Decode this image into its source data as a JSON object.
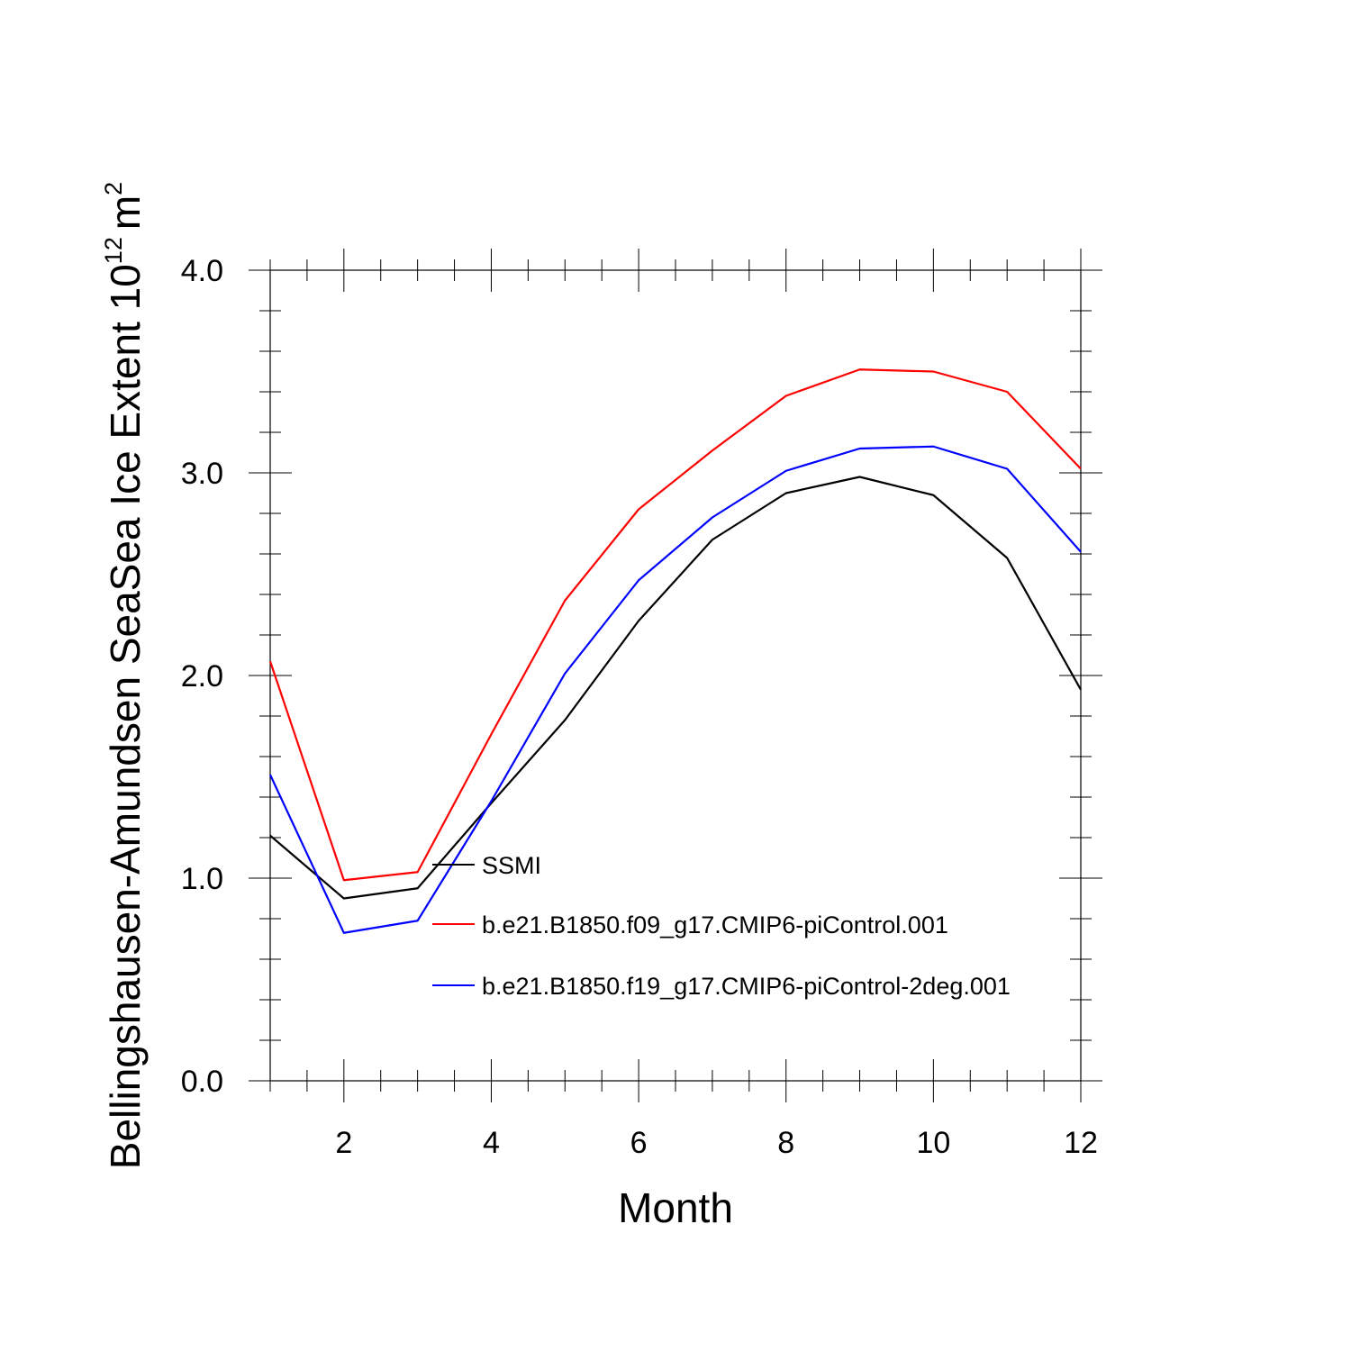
{
  "chart_data": {
    "type": "line",
    "title": "",
    "xlabel": "Month",
    "ylabel": {
      "main": "Bellingshausen-Amundsen SeaSea Ice Extent 10",
      "exponent": "12",
      "unit": "m",
      "unit_exponent": "2"
    },
    "xlim": [
      1,
      12
    ],
    "ylim": [
      0.0,
      4.0
    ],
    "x_ticks": [
      2,
      4,
      6,
      8,
      10,
      12
    ],
    "y_ticks": [
      0.0,
      1.0,
      2.0,
      3.0,
      4.0
    ],
    "y_tick_labels": [
      "0.0",
      "1.0",
      "2.0",
      "3.0",
      "4.0"
    ],
    "x": [
      1,
      2,
      3,
      4,
      5,
      6,
      7,
      8,
      9,
      10,
      11,
      12
    ],
    "series": [
      {
        "name": "SSMI",
        "color": "#000000",
        "values": [
          1.21,
          0.9,
          0.95,
          1.37,
          1.78,
          2.27,
          2.67,
          2.9,
          2.98,
          2.89,
          2.58,
          1.93
        ]
      },
      {
        "name": "b.e21.B1850.f09_g17.CMIP6-piControl.001",
        "color": "#ff0000",
        "values": [
          2.07,
          0.99,
          1.03,
          1.71,
          2.37,
          2.82,
          3.11,
          3.38,
          3.51,
          3.5,
          3.4,
          3.02
        ]
      },
      {
        "name": "b.e21.B1850.f19_g17.CMIP6-piControl-2deg.001",
        "color": "#0000ff",
        "values": [
          1.51,
          0.73,
          0.79,
          1.38,
          2.01,
          2.47,
          2.78,
          3.01,
          3.12,
          3.13,
          3.02,
          2.61
        ]
      }
    ],
    "legend_position": "lower-right inside plot"
  }
}
